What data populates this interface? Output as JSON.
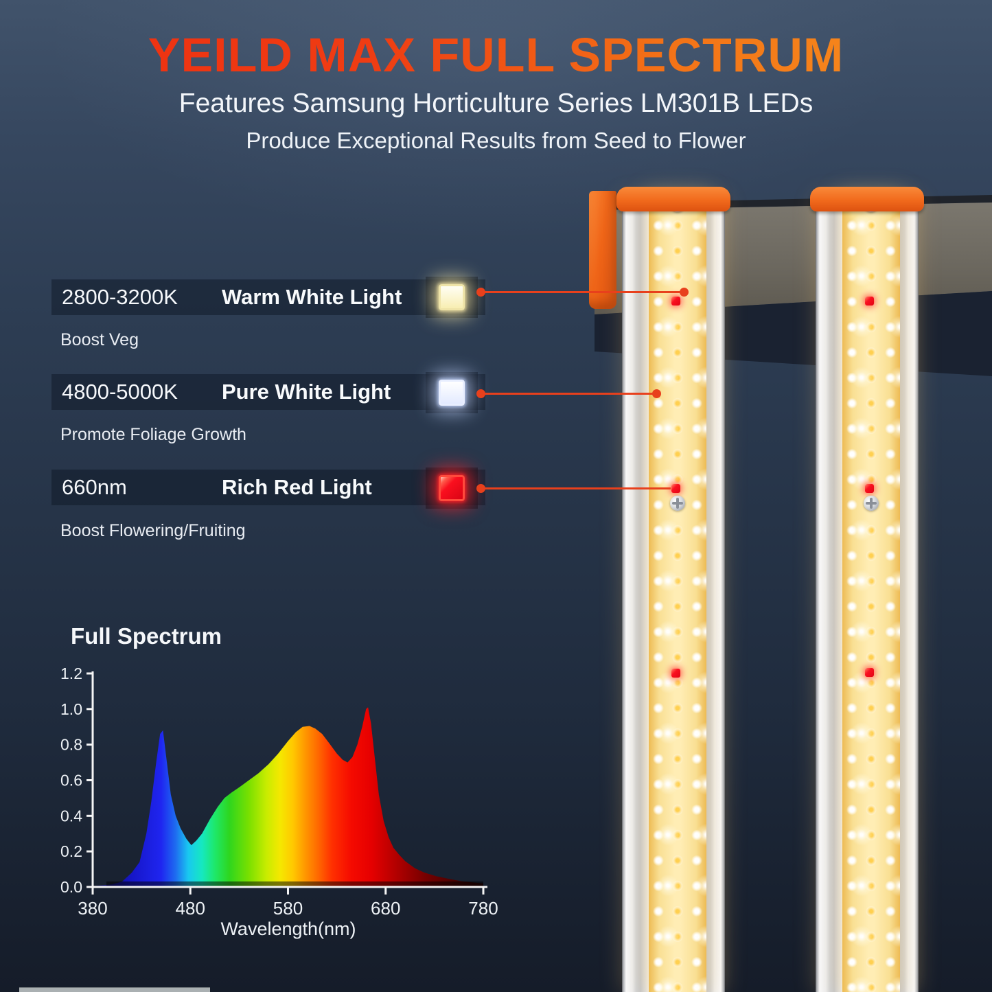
{
  "header": {
    "title": "YEILD MAX FULL SPECTRUM",
    "subtitle1": "Features Samsung Horticulture Series LM301B LEDs",
    "subtitle2": "Produce Exceptional Results from Seed to Flower"
  },
  "features": [
    {
      "range": "2800-3200K",
      "label": "Warm White Light",
      "benefit": "Boost Veg",
      "chip": "warm-white-led",
      "chip_colors": {
        "face": "linear-gradient(180deg,#fffef4 0%,#f8eeb2 100%)",
        "border": "#efe4a8",
        "glow": "rgba(255,238,170,0.70)"
      }
    },
    {
      "range": "4800-5000K",
      "label": "Pure White Light",
      "benefit": "Promote Foliage Growth",
      "chip": "pure-white-led",
      "chip_colors": {
        "face": "linear-gradient(180deg,#ffffff 0%,#e3eaff 100%)",
        "border": "#e8eeff",
        "glow": "rgba(195,214,255,0.70)"
      }
    },
    {
      "range": "660nm",
      "label": "Rich Red Light",
      "benefit": "Boost Flowering/Fruiting",
      "chip": "red-led",
      "chip_colors": {
        "face": "linear-gradient(135deg,#ffc6b8 0%,#ff5a4a 16%,#fa0f1e 38%,#d90414 100%)",
        "border": "#ff4a3c",
        "glow": "rgba(255,34,40,0.75)"
      }
    }
  ],
  "colors": {
    "title_gradient_start": "#ee2d11",
    "title_gradient_end": "#f8931f",
    "background_navy": "#2b3a50",
    "callout_red": "#e8401c",
    "accent_orange": "#f1661c",
    "rail_grey": "#6b675f",
    "led_strip_yellow": "#f9df93",
    "red_diode": "#fa1020"
  },
  "chart_data": {
    "type": "area",
    "title": "Full Spectrum",
    "xlabel": "Wavelength(nm)",
    "ylabel": "",
    "xlim": [
      380,
      780
    ],
    "ylim": [
      0,
      1.2
    ],
    "x_ticks": [
      380,
      480,
      580,
      680,
      780
    ],
    "y_ticks": [
      0.0,
      0.2,
      0.4,
      0.6,
      0.8,
      1.0,
      1.2
    ],
    "grid": false,
    "legend": false,
    "points": [
      [
        380,
        0.005
      ],
      [
        390,
        0.01
      ],
      [
        400,
        0.015
      ],
      [
        410,
        0.03
      ],
      [
        420,
        0.08
      ],
      [
        428,
        0.14
      ],
      [
        435,
        0.3
      ],
      [
        440,
        0.48
      ],
      [
        445,
        0.7
      ],
      [
        449,
        0.86
      ],
      [
        452,
        0.88
      ],
      [
        456,
        0.7
      ],
      [
        460,
        0.52
      ],
      [
        465,
        0.4
      ],
      [
        470,
        0.33
      ],
      [
        476,
        0.27
      ],
      [
        481,
        0.235
      ],
      [
        486,
        0.26
      ],
      [
        492,
        0.3
      ],
      [
        500,
        0.38
      ],
      [
        508,
        0.45
      ],
      [
        515,
        0.5
      ],
      [
        522,
        0.53
      ],
      [
        530,
        0.56
      ],
      [
        540,
        0.6
      ],
      [
        550,
        0.64
      ],
      [
        560,
        0.69
      ],
      [
        570,
        0.75
      ],
      [
        580,
        0.82
      ],
      [
        588,
        0.87
      ],
      [
        595,
        0.9
      ],
      [
        602,
        0.905
      ],
      [
        608,
        0.89
      ],
      [
        615,
        0.86
      ],
      [
        622,
        0.81
      ],
      [
        630,
        0.75
      ],
      [
        636,
        0.715
      ],
      [
        641,
        0.7
      ],
      [
        646,
        0.73
      ],
      [
        651,
        0.8
      ],
      [
        656,
        0.9
      ],
      [
        660,
        1.0
      ],
      [
        662,
        1.01
      ],
      [
        665,
        0.92
      ],
      [
        669,
        0.72
      ],
      [
        673,
        0.52
      ],
      [
        678,
        0.37
      ],
      [
        683,
        0.28
      ],
      [
        688,
        0.22
      ],
      [
        694,
        0.18
      ],
      [
        700,
        0.145
      ],
      [
        710,
        0.105
      ],
      [
        720,
        0.08
      ],
      [
        732,
        0.06
      ],
      [
        745,
        0.045
      ],
      [
        758,
        0.032
      ],
      [
        770,
        0.025
      ],
      [
        780,
        0.02
      ]
    ],
    "spectrum_gradient": [
      [
        380,
        "#10104a"
      ],
      [
        420,
        "#1616c8"
      ],
      [
        450,
        "#1f25f0"
      ],
      [
        465,
        "#1e6cf0"
      ],
      [
        478,
        "#19c8f0"
      ],
      [
        492,
        "#16e8c0"
      ],
      [
        505,
        "#1ee86a"
      ],
      [
        520,
        "#2ed61e"
      ],
      [
        540,
        "#7ae000"
      ],
      [
        558,
        "#c8ec00"
      ],
      [
        572,
        "#f5e800"
      ],
      [
        585,
        "#ffc800"
      ],
      [
        598,
        "#ff9600"
      ],
      [
        612,
        "#ff6400"
      ],
      [
        625,
        "#ff3000"
      ],
      [
        645,
        "#f50a00"
      ],
      [
        665,
        "#e60000"
      ],
      [
        690,
        "#b40000"
      ],
      [
        720,
        "#780000"
      ],
      [
        750,
        "#4a0202"
      ],
      [
        780,
        "#260404"
      ]
    ]
  }
}
